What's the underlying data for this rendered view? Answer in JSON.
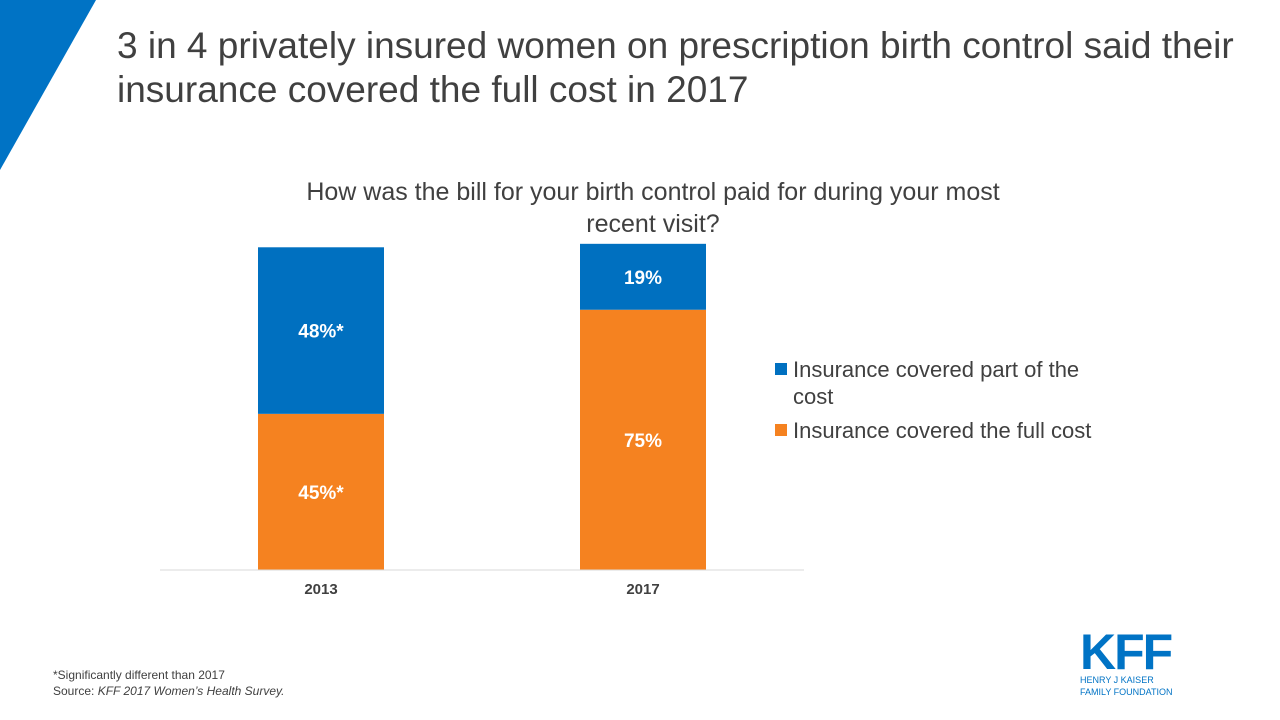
{
  "title": "3 in 4 privately insured women on prescription birth control said their insurance covered the full cost in 2017",
  "colors": {
    "accent": "#0073c5",
    "part": "#0070c0",
    "full": "#f58220",
    "axis": "#d9d9d9"
  },
  "chart_data": {
    "type": "bar",
    "stacked": true,
    "title": "How was the bill for your birth control paid for during your most recent visit?",
    "categories": [
      "2013",
      "2017"
    ],
    "series": [
      {
        "name": "Insurance covered the full cost",
        "values": [
          45,
          75
        ],
        "labels": [
          "45%*",
          "75%"
        ],
        "color": "#f58220"
      },
      {
        "name": "Insurance covered part of the cost",
        "values": [
          48,
          19
        ],
        "labels": [
          "48%*",
          "19%"
        ],
        "color": "#0070c0"
      }
    ],
    "ylim": [
      0,
      100
    ],
    "grid": false,
    "legend_position": "right"
  },
  "legend": [
    {
      "label": "Insurance covered part of the cost",
      "color": "#0070c0"
    },
    {
      "label": "Insurance covered the full cost",
      "color": "#f58220"
    }
  ],
  "footnote": {
    "note": "*Significantly different than 2017",
    "source_prefix": "Source: ",
    "source_title": "KFF 2017 Women’s Health Survey."
  },
  "logo": {
    "mark": "KFF",
    "line1": "HENRY J KAISER",
    "line2": "FAMILY FOUNDATION"
  }
}
